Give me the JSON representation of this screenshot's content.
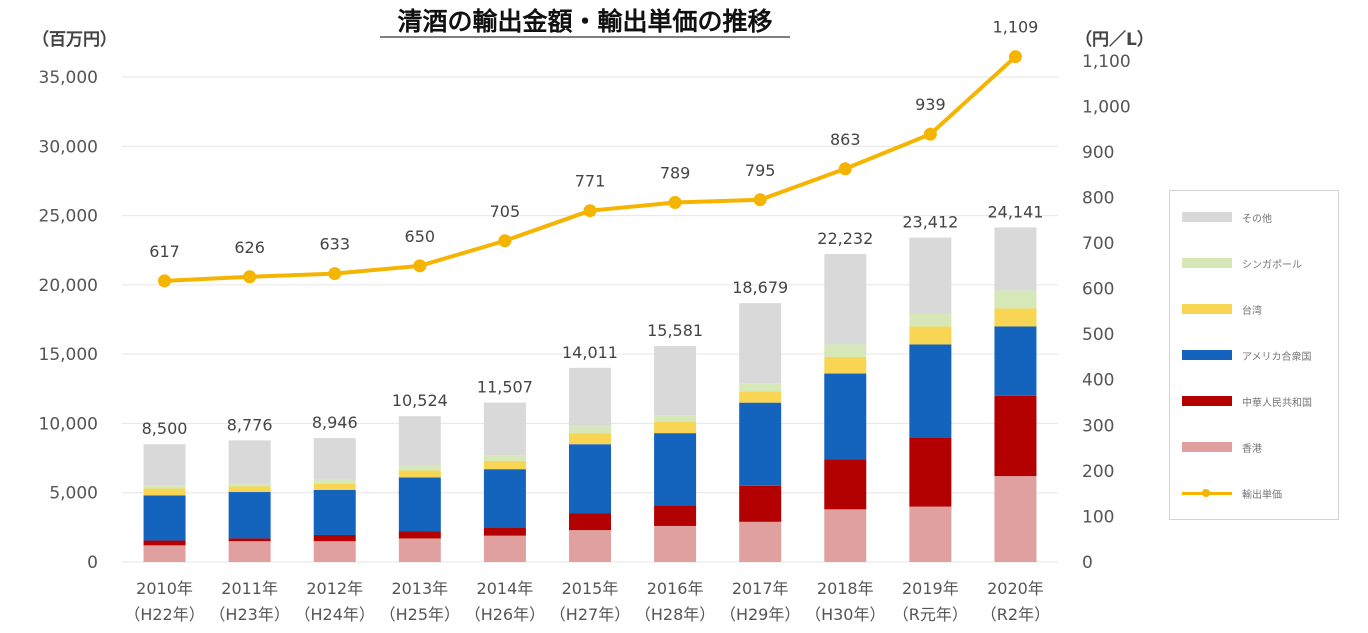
{
  "chart_data": {
    "type": "bar",
    "title": "清酒の輸出金額・輸出単価の推移",
    "left_unit": "（百万円）",
    "right_unit": "（円／L）",
    "categories": [
      "2010年",
      "2011年",
      "2012年",
      "2013年",
      "2014年",
      "2015年",
      "2016年",
      "2017年",
      "2018年",
      "2019年",
      "2020年"
    ],
    "subcategories": [
      "（H22年）",
      "（H23年）",
      "（H24年）",
      "（H25年）",
      "（H26年）",
      "（H27年）",
      "（H28年）",
      "（H29年）",
      "（H30年）",
      "（R元年）",
      "（R2年）"
    ],
    "ylim": [
      0,
      35000
    ],
    "yticks": [
      "0",
      "5,000",
      "10,000",
      "15,000",
      "20,000",
      "25,000",
      "30,000",
      "35,000"
    ],
    "y2lim": [
      0,
      1150
    ],
    "y2ticks": [
      "0",
      "100",
      "200",
      "300",
      "400",
      "500",
      "600",
      "700",
      "800",
      "900",
      "1,000",
      "1,100"
    ],
    "series": [
      {
        "name": "香港",
        "color": "#e0a0a0",
        "values": [
          1200,
          1500,
          1500,
          1700,
          1900,
          2300,
          2600,
          2900,
          3800,
          4000,
          6200
        ]
      },
      {
        "name": "中華人民共和国",
        "color": "#b30000",
        "values": [
          350,
          200,
          450,
          500,
          600,
          1200,
          1500,
          2600,
          3600,
          5000,
          5800
        ]
      },
      {
        "name": "アメリカ合衆国",
        "color": "#1464be",
        "values": [
          3250,
          3350,
          3250,
          3900,
          4200,
          5000,
          5200,
          6000,
          6200,
          6700,
          5000
        ]
      },
      {
        "name": "台湾",
        "color": "#f8d654",
        "values": [
          500,
          400,
          450,
          500,
          600,
          800,
          800,
          800,
          1200,
          1300,
          1300
        ]
      },
      {
        "name": "シンガポール",
        "color": "#d6e8b8",
        "values": [
          200,
          250,
          300,
          350,
          400,
          500,
          500,
          600,
          900,
          900,
          1300
        ]
      },
      {
        "name": "その他",
        "color": "#d9d9d9",
        "values": [
          3000,
          3076,
          2996,
          3574,
          3807,
          4211,
          4981,
          5779,
          6532,
          5512,
          4541
        ]
      }
    ],
    "totals": [
      8500,
      8776,
      8946,
      10524,
      11507,
      14011,
      15581,
      18679,
      22232,
      23412,
      24141
    ],
    "total_labels": [
      "8,500",
      "8,776",
      "8,946",
      "10,524",
      "11,507",
      "14,011",
      "15,581",
      "18,679",
      "22,232",
      "23,412",
      "24,141"
    ],
    "line": {
      "name": "輸出単価",
      "color": "#f5b400",
      "values": [
        617,
        626,
        633,
        650,
        705,
        771,
        789,
        795,
        863,
        939,
        1109
      ],
      "labels": [
        "617",
        "626",
        "633",
        "650",
        "705",
        "771",
        "789",
        "795",
        "863",
        "939",
        "1,109"
      ]
    },
    "legend_order": [
      "その他",
      "シンガポール",
      "台湾",
      "アメリカ合衆国",
      "中華人民共和国",
      "香港",
      "輸出単価"
    ]
  }
}
